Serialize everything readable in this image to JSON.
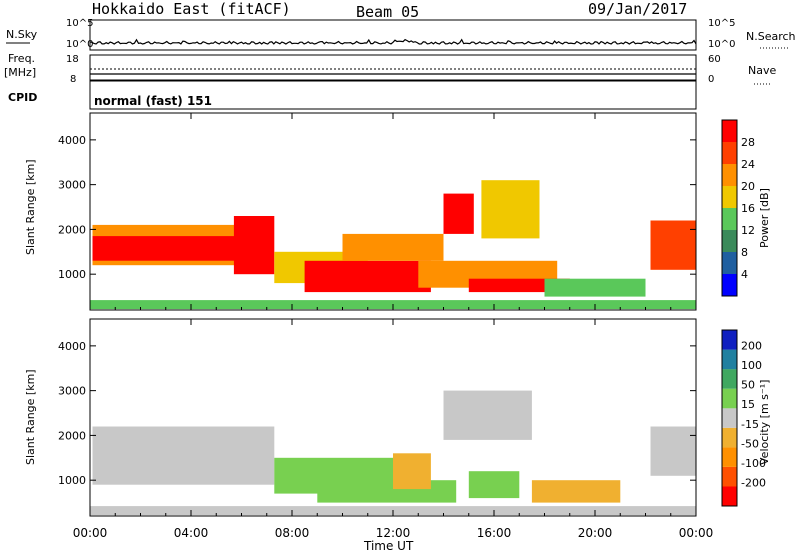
{
  "header": {
    "title": "Hokkaido East (fitACF)",
    "beam": "Beam 05",
    "date": "09/Jan/2017"
  },
  "top_panels": {
    "nsky": {
      "label": "N.Sky",
      "left_ticks": [
        "10^5",
        "10^0"
      ],
      "right_ticks": [
        "10^5",
        "10^0"
      ],
      "right_label": "N.Search"
    },
    "freq": {
      "label": "Freq.",
      "unit": "[MHz]",
      "left_ticks": [
        "18",
        "8"
      ],
      "right_ticks": [
        "60",
        "0"
      ],
      "right_label": "Nave"
    },
    "cpid": {
      "label": "CPID",
      "value": "normal (fast) 151"
    }
  },
  "colors": {
    "power": [
      "#0000ff",
      "#1f5fa0",
      "#3a8a5a",
      "#5ac85a",
      "#f0c800",
      "#ff9000",
      "#ff4000",
      "#ff0000"
    ],
    "velocity": [
      "#ff0000",
      "#ff5000",
      "#ff9000",
      "#f0b030",
      "#c8c8c8",
      "#78d050",
      "#40a860",
      "#2080a0",
      "#1020c0"
    ]
  },
  "chart_data": [
    {
      "type": "heatmap",
      "name": "power",
      "ylabel": "Slant Range [km]",
      "xlabel": "Time UT",
      "x_ticks": [
        "00:00",
        "04:00",
        "08:00",
        "12:00",
        "16:00",
        "20:00",
        "00:00"
      ],
      "y_ticks": [
        1000,
        2000,
        3000,
        4000
      ],
      "ylim": [
        200,
        4600
      ],
      "xlim_hours": [
        0,
        24
      ],
      "colorbar": {
        "label": "Power [dB]",
        "ticks": [
          "28",
          "24",
          "20",
          "16",
          "12",
          "8",
          "4"
        ],
        "range": [
          0,
          32
        ]
      },
      "regions": [
        {
          "t0": 0.1,
          "t1": 6.2,
          "r0": 1200,
          "r1": 2100,
          "value": 22
        },
        {
          "t0": 0.1,
          "t1": 6.2,
          "r0": 1300,
          "r1": 1850,
          "value": 30
        },
        {
          "t0": 5.7,
          "t1": 7.3,
          "r0": 1000,
          "r1": 2300,
          "value": 28
        },
        {
          "t0": 7.3,
          "t1": 11.0,
          "r0": 800,
          "r1": 1500,
          "value": 18
        },
        {
          "t0": 8.5,
          "t1": 13.5,
          "r0": 600,
          "r1": 1300,
          "value": 30
        },
        {
          "t0": 10.0,
          "t1": 14.0,
          "r0": 1300,
          "r1": 1900,
          "value": 20
        },
        {
          "t0": 14.0,
          "t1": 15.2,
          "r0": 1900,
          "r1": 2800,
          "value": 28
        },
        {
          "t0": 15.5,
          "t1": 17.8,
          "r0": 1800,
          "r1": 3100,
          "value": 18
        },
        {
          "t0": 13.0,
          "t1": 18.5,
          "r0": 700,
          "r1": 1300,
          "value": 22
        },
        {
          "t0": 15.0,
          "t1": 19.0,
          "r0": 600,
          "r1": 900,
          "value": 30
        },
        {
          "t0": 18.0,
          "t1": 22.0,
          "r0": 500,
          "r1": 900,
          "value": 14
        },
        {
          "t0": 22.2,
          "t1": 24.0,
          "r0": 1100,
          "r1": 2200,
          "value": 26
        },
        {
          "t0": 0.0,
          "t1": 24.0,
          "r0": 220,
          "r1": 420,
          "value": 14
        }
      ]
    },
    {
      "type": "heatmap",
      "name": "velocity",
      "ylabel": "Slant Range [km]",
      "xlabel": "Time UT",
      "x_ticks": [
        "00:00",
        "04:00",
        "08:00",
        "12:00",
        "16:00",
        "20:00",
        "00:00"
      ],
      "y_ticks": [
        1000,
        2000,
        3000,
        4000
      ],
      "ylim": [
        200,
        4600
      ],
      "xlim_hours": [
        0,
        24
      ],
      "colorbar": {
        "label": "Velocity [m s⁻¹]",
        "ticks": [
          "200",
          "100",
          "50",
          "15",
          "-15",
          "-50",
          "-100",
          "-200"
        ],
        "range": [
          -250,
          250
        ]
      },
      "regions": [
        {
          "t0": 0.1,
          "t1": 7.3,
          "r0": 900,
          "r1": 2200,
          "value": 0
        },
        {
          "t0": 7.3,
          "t1": 12.0,
          "r0": 700,
          "r1": 1500,
          "value": 40
        },
        {
          "t0": 9.0,
          "t1": 14.5,
          "r0": 500,
          "r1": 1000,
          "value": 30
        },
        {
          "t0": 12.0,
          "t1": 13.5,
          "r0": 800,
          "r1": 1600,
          "value": -40
        },
        {
          "t0": 14.0,
          "t1": 17.5,
          "r0": 1900,
          "r1": 3000,
          "value": 0
        },
        {
          "t0": 15.0,
          "t1": 17.0,
          "r0": 600,
          "r1": 1200,
          "value": 40
        },
        {
          "t0": 17.5,
          "t1": 21.0,
          "r0": 500,
          "r1": 1000,
          "value": -40
        },
        {
          "t0": 22.2,
          "t1": 24.0,
          "r0": 1100,
          "r1": 2200,
          "value": 0
        },
        {
          "t0": 0.0,
          "t1": 24.0,
          "r0": 220,
          "r1": 420,
          "value": -20
        }
      ]
    }
  ],
  "x_axis_title": "Time UT"
}
